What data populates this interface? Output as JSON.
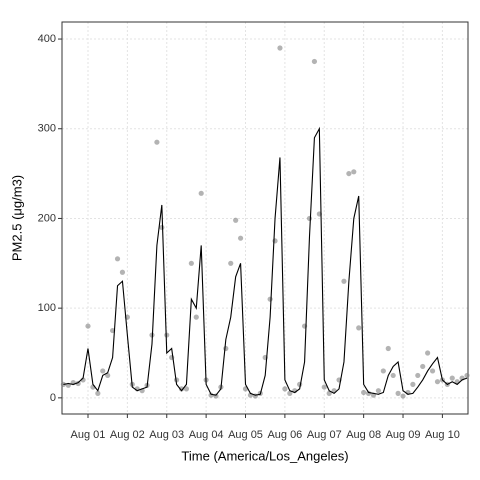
{
  "chart_data": {
    "type": "line+scatter",
    "xlabel": "Time (America/Los_Angeles)",
    "ylabel": "PM2.5 (μg/m3)",
    "x": [
      -0.625,
      -0.5,
      -0.375,
      -0.25,
      -0.125,
      0,
      0.125,
      0.25,
      0.375,
      0.5,
      0.625,
      0.75,
      0.875,
      1,
      1.125,
      1.25,
      1.375,
      1.5,
      1.625,
      1.75,
      1.875,
      2,
      2.125,
      2.25,
      2.375,
      2.5,
      2.625,
      2.75,
      2.875,
      3,
      3.125,
      3.25,
      3.375,
      3.5,
      3.625,
      3.75,
      3.875,
      4,
      4.125,
      4.25,
      4.375,
      4.5,
      4.625,
      4.75,
      4.875,
      5,
      5.125,
      5.25,
      5.375,
      5.5,
      5.625,
      5.75,
      5.875,
      6,
      6.125,
      6.25,
      6.375,
      6.5,
      6.625,
      6.75,
      6.875,
      7,
      7.125,
      7.25,
      7.375,
      7.5,
      7.625,
      7.75,
      7.875,
      8,
      8.125,
      8.25,
      8.375,
      8.5,
      8.625,
      8.75,
      8.875,
      9,
      9.125,
      9.25,
      9.375,
      9.5,
      9.625
    ],
    "series": [
      {
        "name": "points",
        "mark": "scatter",
        "color": "#808080",
        "values": [
          15,
          14,
          17,
          16,
          20,
          80,
          12,
          5,
          30,
          25,
          75,
          155,
          140,
          90,
          15,
          10,
          8,
          14,
          70,
          285,
          190,
          70,
          45,
          20,
          10,
          10,
          150,
          90,
          228,
          20,
          3,
          2,
          12,
          55,
          150,
          198,
          178,
          10,
          3,
          2,
          5,
          45,
          110,
          175,
          390,
          10,
          5,
          8,
          15,
          80,
          200,
          375,
          205,
          12,
          5,
          8,
          20,
          130,
          250,
          252,
          78,
          6,
          5,
          3,
          8,
          30,
          55,
          25,
          5,
          2,
          6,
          15,
          25,
          35,
          50,
          30,
          18,
          20,
          15,
          22,
          18,
          22,
          25
        ]
      },
      {
        "name": "line",
        "mark": "line",
        "color": "#000000",
        "values": [
          15,
          16,
          15,
          17,
          22,
          55,
          15,
          8,
          25,
          28,
          45,
          125,
          130,
          70,
          12,
          8,
          10,
          12,
          60,
          170,
          215,
          50,
          55,
          15,
          8,
          15,
          110,
          100,
          170,
          15,
          4,
          3,
          10,
          65,
          90,
          135,
          150,
          15,
          5,
          3,
          4,
          25,
          90,
          200,
          268,
          20,
          8,
          6,
          10,
          40,
          180,
          290,
          300,
          20,
          8,
          5,
          10,
          40,
          130,
          200,
          225,
          15,
          6,
          5,
          4,
          6,
          25,
          35,
          40,
          8,
          4,
          5,
          12,
          20,
          30,
          38,
          45,
          20,
          15,
          18,
          15,
          20,
          22
        ]
      }
    ],
    "xlim": [
      -0.66,
      9.65
    ],
    "xticks": [
      {
        "value": 0,
        "label": "Aug 01"
      },
      {
        "value": 1,
        "label": "Aug 02"
      },
      {
        "value": 2,
        "label": "Aug 03"
      },
      {
        "value": 3,
        "label": "Aug 04"
      },
      {
        "value": 4,
        "label": "Aug 05"
      },
      {
        "value": 5,
        "label": "Aug 06"
      },
      {
        "value": 6,
        "label": "Aug 07"
      },
      {
        "value": 7,
        "label": "Aug 08"
      },
      {
        "value": 8,
        "label": "Aug 09"
      },
      {
        "value": 9,
        "label": "Aug 10"
      }
    ],
    "ylim": [
      -18,
      419
    ],
    "yticks": [
      0,
      100,
      200,
      300,
      400
    ],
    "grid": true
  }
}
